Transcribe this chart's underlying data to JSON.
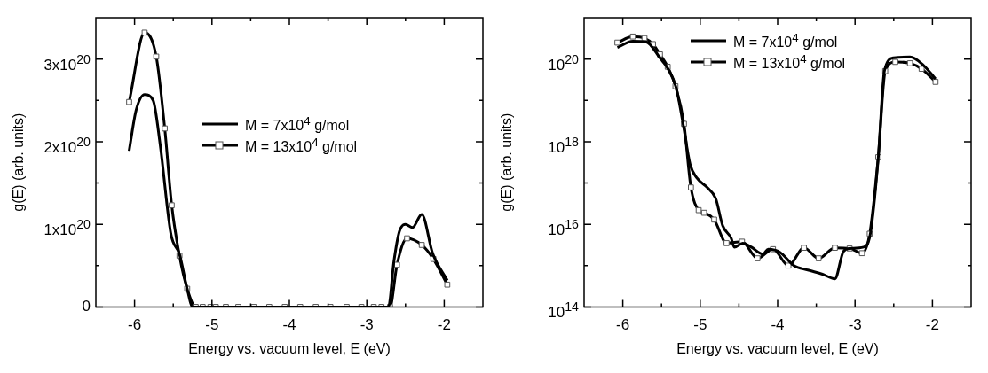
{
  "chart_data": [
    {
      "type": "line",
      "xlabel": "Energy vs. vacuum level, E (eV)",
      "ylabel": "g(E) (arb. units)",
      "xlim": [
        -6.5,
        -1.5
      ],
      "xticks": [
        -6,
        {
          "value": -5.5,
          "label": null
        },
        -5,
        {
          "value": -4.5,
          "label": null
        },
        -4,
        {
          "value": -3.5,
          "label": null
        },
        -3,
        {
          "value": -2.5,
          "label": null
        },
        -2
      ],
      "ylim": [
        0,
        3.5e+20
      ],
      "yticks": [
        {
          "value": 0,
          "label": "0"
        },
        {
          "value": 5e+19,
          "label": null
        },
        {
          "value": 1e+20,
          "label": "1x10$^{20}$"
        },
        {
          "value": 1.5e+20,
          "label": null
        },
        {
          "value": 2e+20,
          "label": "2x10$^{20}$"
        },
        {
          "value": 2.5e+20,
          "label": null
        },
        {
          "value": 3e+20,
          "label": "3x10$^{20}$"
        }
      ],
      "legend": "center",
      "series": [
        {
          "name": "M = 7x10$^{4}$ g/mol",
          "color": "#000000",
          "marker": "none",
          "x": [
            -6.07,
            -5.98,
            -5.87,
            -5.76,
            -5.67,
            -5.53,
            -5.42,
            -5.32,
            -5.25,
            -2.72,
            -2.65,
            -2.58,
            -2.5,
            -2.41,
            -2.29,
            -2.15,
            -1.96
          ],
          "values": [
            1.89e+20,
            2.38e+20,
            2.57e+20,
            2.5e+20,
            1.97e+20,
            8.8e+19,
            6.4e+19,
            2.2e+19,
            0,
            0,
            5.5e+19,
            9.1e+19,
            1e+20,
            9.6e+19,
            1.12e+20,
            6.5e+19,
            3.2e+19
          ]
        },
        {
          "name": "M = 13x10$^{4}$ g/mol",
          "color": "#000000",
          "marker": "square",
          "x": [
            -6.07,
            -5.87,
            -5.72,
            -5.61,
            -5.52,
            -5.42,
            -5.32,
            -5.21,
            -5.12,
            -5.02,
            -4.95,
            -4.82,
            -4.66,
            -4.46,
            -4.26,
            -4.06,
            -3.86,
            -3.66,
            -3.47,
            -3.26,
            -3.07,
            -2.91,
            -2.81,
            -2.7,
            -2.61,
            -2.48,
            -2.29,
            -2.14,
            -1.96
          ],
          "values": [
            2.48e+20,
            3.32e+20,
            3.03e+20,
            2.16e+20,
            1.23e+20,
            6.2e+19,
            2.2e+19,
            0,
            0,
            0,
            0,
            0,
            0,
            0,
            0,
            0,
            0,
            0,
            0,
            0,
            0,
            0,
            0,
            0,
            5.1e+19,
            8.3e+19,
            7.5e+19,
            5.8e+19,
            2.7e+19
          ]
        }
      ]
    },
    {
      "type": "line",
      "xlabel": "Energy vs. vacuum level, E (eV)",
      "ylabel": "g(E) (arb. units)",
      "log": "y",
      "xlim": [
        -6.5,
        -1.5
      ],
      "xticks": [
        -6,
        {
          "value": -5.5,
          "label": null
        },
        -5,
        {
          "value": -4.5,
          "label": null
        },
        -4,
        {
          "value": -3.5,
          "label": null
        },
        -3,
        {
          "value": -2.5,
          "label": null
        },
        -2
      ],
      "ylim": [
        100000000000000.0,
        1e+21
      ],
      "yticks": [
        {
          "value": 100000000000000.0,
          "label": "10$^{14}$"
        },
        {
          "value": 1000000000000000.0,
          "label": null
        },
        {
          "value": 1e+16,
          "label": "10$^{16}$"
        },
        {
          "value": 1e+17,
          "label": null
        },
        {
          "value": 1e+18,
          "label": "10$^{18}$"
        },
        {
          "value": 1e+19,
          "label": null
        },
        {
          "value": 1e+20,
          "label": "10$^{20}$"
        }
      ],
      "legend": "top",
      "series": [
        {
          "name": "M = 7x10$^{4}$ g/mol",
          "color": "#000000",
          "marker": "none",
          "x": [
            -6.07,
            -5.87,
            -5.7,
            -5.51,
            -5.42,
            -5.31,
            -5.22,
            -5.13,
            -5.04,
            -4.91,
            -4.8,
            -4.71,
            -4.6,
            -4.56,
            -4.45,
            -4.34,
            -4.19,
            -4.12,
            -3.97,
            -3.79,
            -3.61,
            -3.42,
            -3.26,
            -3.15,
            -3.07,
            -2.89,
            -2.8,
            -2.7,
            -2.62,
            -2.5,
            -2.29,
            -2.12,
            -1.96
          ],
          "values": [
            1.9e+20,
            2.7e+20,
            2.6e+20,
            1e+20,
            6e+19,
            2e+19,
            2.6e+18,
            2.8e+17,
            1.3e+17,
            7.8e+16,
            4.2e+16,
            9300000000000000.0,
            4600000000000000.0,
            2800000000000000.0,
            3500000000000000.0,
            2800000000000000.0,
            1900000000000000.0,
            2500000000000000.0,
            2100000000000000.0,
            1000000000000000.0,
            780000000000000.0,
            620000000000000.0,
            480000000000000.0,
            2200000000000000.0,
            2600000000000000.0,
            2800000000000000.0,
            6200000000000000.0,
            4e+17,
            5.2e+19,
            1.07e+20,
            1.12e+20,
            7.2e+19,
            3.3e+19
          ]
        },
        {
          "name": "M = 13x10$^{4}$ g/mol",
          "color": "#000000",
          "marker": "square",
          "x": [
            -6.07,
            -5.87,
            -5.72,
            -5.61,
            -5.52,
            -5.42,
            -5.32,
            -5.21,
            -5.12,
            -5.02,
            -4.95,
            -4.82,
            -4.66,
            -4.46,
            -4.26,
            -4.06,
            -3.86,
            -3.66,
            -3.47,
            -3.26,
            -3.07,
            -2.91,
            -2.81,
            -2.7,
            -2.61,
            -2.48,
            -2.29,
            -2.14,
            -1.96
          ],
          "values": [
            2.5e+20,
            3.5e+20,
            3.2e+20,
            2.3e+20,
            1.3e+20,
            6.5e+19,
            2.2e+19,
            2.7e+18,
            7.8e+16,
            2.2e+16,
            1.9e+16,
            1.3e+16,
            3500000000000000.0,
            3800000000000000.0,
            1500000000000000.0,
            2500000000000000.0,
            1000000000000000.0,
            2700000000000000.0,
            1500000000000000.0,
            2700000000000000.0,
            2600000000000000.0,
            2000000000000000.0,
            5900000000000000.0,
            4.2e+17,
            5.1e+19,
            8.5e+19,
            7.9e+19,
            5.8e+19,
            2.8e+19
          ]
        }
      ]
    }
  ]
}
